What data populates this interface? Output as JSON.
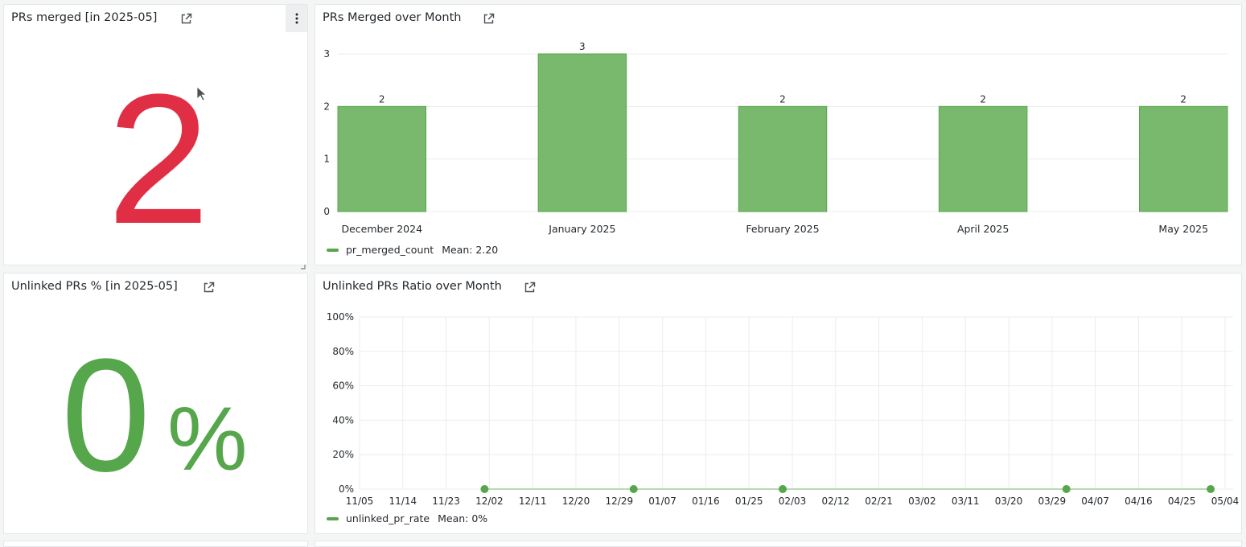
{
  "colors": {
    "red": "#e02f44",
    "green": "#56a64b",
    "bar_fill": "#78b96d",
    "grid": "#ececec",
    "axis_text": "#24292e"
  },
  "panel_prs_merged": {
    "title": "PRs merged [in 2025-05]",
    "value": "2",
    "icons": [
      "external-link-icon",
      "kebab-menu-icon",
      "resize-handle-icon"
    ]
  },
  "panel_prs_over_month": {
    "title": "PRs Merged over Month",
    "legend": {
      "series": "pr_merged_count",
      "mean": "Mean: 2.20"
    }
  },
  "panel_unlinked_pct": {
    "title": "Unlinked PRs % [in 2025-05]",
    "value": "0",
    "unit": "%"
  },
  "panel_unlinked_ratio": {
    "title": "Unlinked PRs Ratio over Month",
    "legend": {
      "series": "unlinked_pr_rate",
      "mean": "Mean: 0%"
    }
  },
  "chart_data": [
    {
      "type": "bar",
      "title": "PRs Merged over Month",
      "categories": [
        "December 2024",
        "January 2025",
        "February 2025",
        "April 2025",
        "May 2025"
      ],
      "series": [
        {
          "name": "pr_merged_count",
          "values": [
            2,
            3,
            2,
            2,
            2
          ]
        }
      ],
      "data_labels": [
        "2",
        "3",
        "2",
        "2",
        "2"
      ],
      "yticks": [
        "0",
        "1",
        "2",
        "3"
      ],
      "ylim": [
        0,
        3
      ],
      "grid": true,
      "legend": "bottom-left"
    },
    {
      "type": "line",
      "title": "Unlinked PRs Ratio over Month",
      "x_ticks": [
        "11/05",
        "11/14",
        "11/23",
        "12/02",
        "12/11",
        "12/20",
        "12/29",
        "01/07",
        "01/16",
        "01/25",
        "02/03",
        "02/12",
        "02/21",
        "03/02",
        "03/11",
        "03/20",
        "03/29",
        "04/07",
        "04/16",
        "04/25",
        "05/04"
      ],
      "y_ticks": [
        "0%",
        "20%",
        "40%",
        "60%",
        "80%",
        "100%"
      ],
      "x_range": [
        "11/05",
        "05/04"
      ],
      "ylim": [
        0,
        100
      ],
      "series": [
        {
          "name": "unlinked_pr_rate",
          "points": [
            {
              "x": "12/01",
              "y": 0
            },
            {
              "x": "01/01",
              "y": 0
            },
            {
              "x": "02/01",
              "y": 0
            },
            {
              "x": "04/01",
              "y": 0
            },
            {
              "x": "05/01",
              "y": 0
            }
          ]
        }
      ],
      "grid": true,
      "legend": "bottom-left"
    }
  ]
}
